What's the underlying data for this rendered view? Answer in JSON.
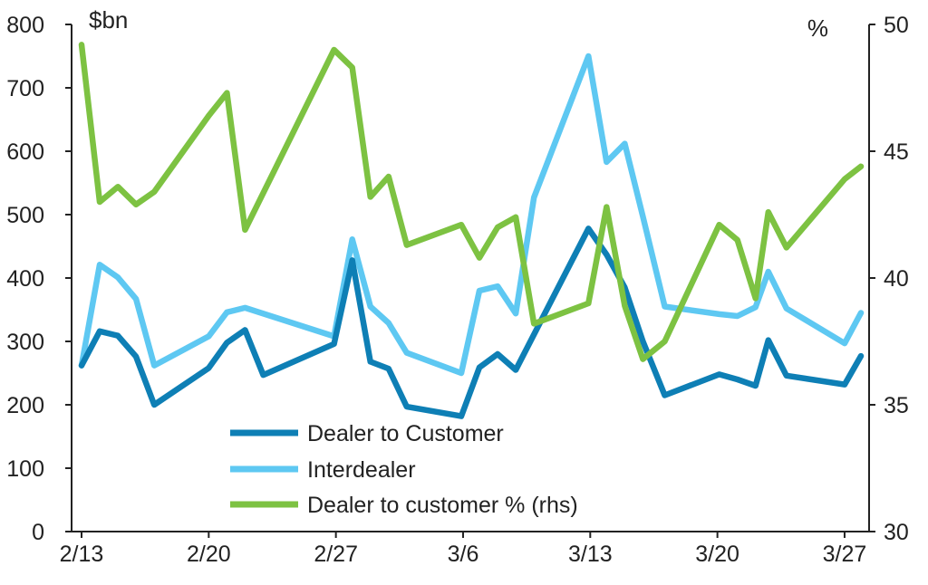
{
  "chart_data": {
    "type": "line",
    "left_unit": "$bn",
    "right_unit": "%",
    "x_tick_labels": [
      "2/13",
      "2/20",
      "2/27",
      "3/6",
      "3/13",
      "3/20",
      "3/27"
    ],
    "x_tick_days": [
      0,
      7,
      14,
      21,
      28,
      35,
      42
    ],
    "ylim_left": [
      0,
      800
    ],
    "yticks_left": [
      0,
      100,
      200,
      300,
      400,
      500,
      600,
      700,
      800
    ],
    "ylim_right": [
      30,
      50
    ],
    "yticks_right": [
      30,
      35,
      40,
      45,
      50
    ],
    "grid": false,
    "legend_position": "bottom-center",
    "series": [
      {
        "name": "Dealer to Customer",
        "axis": "left",
        "color": "#0e7fb5",
        "x": [
          0,
          1,
          2,
          3,
          4,
          7,
          8,
          9,
          10,
          13.9,
          14.9,
          15.9,
          16.9,
          17.9,
          20.9,
          21.9,
          22.9,
          23.9,
          27.9,
          28.9,
          29.9,
          30.9,
          32.1,
          35.1,
          36.1,
          37.1,
          37.8,
          38.8,
          42,
          42.9
        ],
        "y": [
          262,
          316,
          309,
          276,
          200,
          258,
          298,
          318,
          247,
          296,
          428,
          268,
          257,
          197,
          182,
          259,
          280,
          255,
          478,
          437,
          385,
          300,
          215,
          248,
          240,
          230,
          302,
          246,
          232,
          277
        ]
      },
      {
        "name": "Interdealer",
        "axis": "left",
        "color": "#5ec8f2",
        "x": [
          0,
          1,
          2,
          3,
          4,
          7,
          8,
          9,
          13.9,
          14.9,
          15.9,
          16.9,
          17.9,
          20.9,
          21.9,
          22.9,
          23.9,
          24.9,
          27.9,
          28.9,
          29.9,
          30.9,
          32.1,
          35.1,
          36.1,
          37.1,
          37.8,
          38.8,
          42,
          42.9
        ],
        "y": [
          262,
          421,
          401,
          367,
          262,
          308,
          346,
          353,
          308,
          461,
          355,
          329,
          282,
          250,
          380,
          387,
          344,
          527,
          750,
          583,
          612,
          497,
          355,
          343,
          340,
          354,
          410,
          352,
          297,
          345
        ]
      },
      {
        "name": "Dealer to customer % (rhs)",
        "axis": "right",
        "color": "#7dc242",
        "x": [
          0,
          1,
          2,
          3,
          4,
          7,
          8,
          9,
          13.9,
          14.9,
          15.9,
          16.9,
          17.9,
          20.9,
          21.9,
          22.9,
          23.9,
          24.9,
          27.9,
          28.9,
          29.9,
          30.9,
          32.1,
          35.1,
          36.1,
          37.1,
          37.8,
          38.8,
          42,
          42.9
        ],
        "y": [
          49.2,
          43.0,
          43.6,
          42.9,
          43.4,
          46.4,
          47.3,
          41.9,
          49.0,
          48.3,
          43.2,
          44.0,
          41.3,
          42.1,
          40.8,
          42.0,
          42.4,
          38.2,
          39.0,
          42.8,
          38.9,
          36.8,
          37.5,
          42.1,
          41.5,
          39.2,
          42.6,
          41.2,
          43.9,
          44.4
        ]
      }
    ]
  }
}
